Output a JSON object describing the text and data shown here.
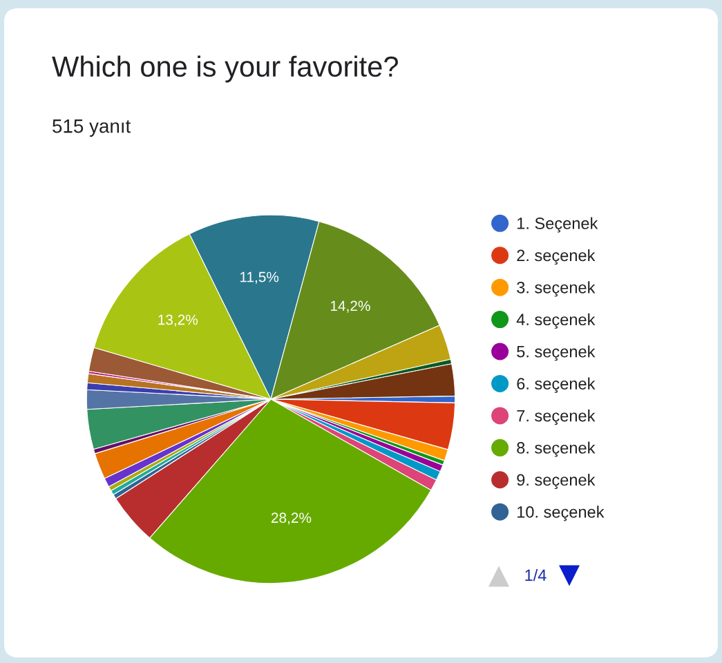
{
  "chart_data": {
    "type": "pie",
    "title": "Which one is your favorite?",
    "subtitle": "515 yanıt",
    "categories": [
      "1. Seçenek",
      "2. seçenek",
      "3. seçenek",
      "4. seçenek",
      "5. seçenek",
      "6. seçenek",
      "7. seçenek",
      "8. seçenek",
      "9. seçenek",
      "10. seçenek",
      null,
      null,
      null,
      null,
      null,
      null,
      null,
      null,
      null,
      null,
      null,
      null,
      null,
      null,
      null,
      null,
      null
    ],
    "values": [
      0.6,
      4.1,
      1.0,
      0.4,
      0.6,
      0.8,
      1.0,
      28.2,
      4.5,
      0.4,
      0.4,
      0.4,
      0.8,
      2.3,
      0.4,
      3.5,
      1.7,
      0.6,
      0.8,
      0.2,
      2.1,
      13.2,
      11.5,
      14.2,
      3.1,
      0.4,
      2.8
    ],
    "colors": [
      "#3366cc",
      "#dc3912",
      "#ff9900",
      "#109618",
      "#990099",
      "#0099c6",
      "#dd4477",
      "#66aa00",
      "#b82e2e",
      "#316395",
      "#22aa99",
      "#aaaa11",
      "#6633cc",
      "#e67300",
      "#651067",
      "#329262",
      "#5574a6",
      "#3b3eac",
      "#b77322",
      "#b91383",
      "#9c5935",
      "#a9c413",
      "#2a778d",
      "#668d1c",
      "#bea413",
      "#0c5922",
      "#743411"
    ],
    "value_labels": [
      null,
      null,
      null,
      null,
      null,
      null,
      null,
      "28,2%",
      null,
      null,
      null,
      null,
      null,
      null,
      null,
      null,
      null,
      null,
      null,
      null,
      null,
      "13,2%",
      "11,5%",
      "14,2%",
      null,
      null,
      null
    ],
    "legend": "right",
    "annotations": [
      "1/4"
    ]
  }
}
